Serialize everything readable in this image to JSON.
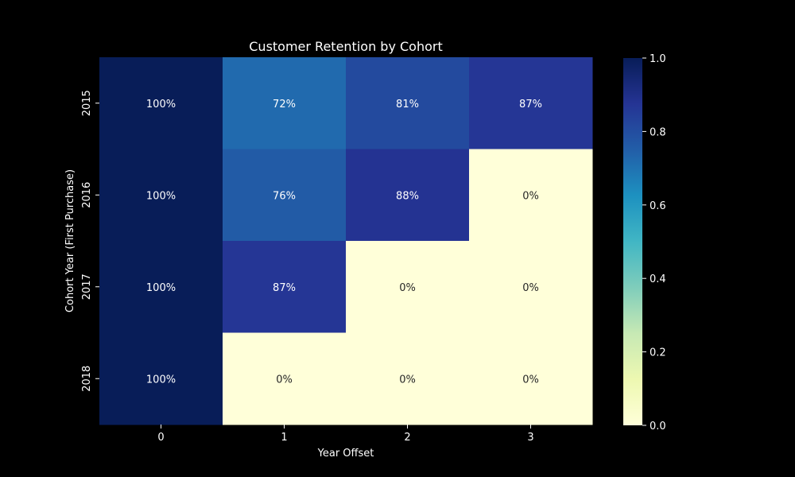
{
  "chart_data": {
    "type": "heatmap",
    "title": "Customer Retention by Cohort",
    "xlabel": "Year Offset",
    "ylabel": "Cohort Year (First Purchase)",
    "x_categories": [
      "0",
      "1",
      "2",
      "3"
    ],
    "y_categories": [
      "2015",
      "2016",
      "2017",
      "2018"
    ],
    "values": [
      [
        1.0,
        0.72,
        0.81,
        0.87
      ],
      [
        1.0,
        0.76,
        0.88,
        0.0
      ],
      [
        1.0,
        0.87,
        0.0,
        0.0
      ],
      [
        1.0,
        0.0,
        0.0,
        0.0
      ]
    ],
    "cell_labels": [
      [
        "100%",
        "72%",
        "81%",
        "87%"
      ],
      [
        "100%",
        "76%",
        "88%",
        "0%"
      ],
      [
        "100%",
        "87%",
        "0%",
        "0%"
      ],
      [
        "100%",
        "0%",
        "0%",
        "0%"
      ]
    ],
    "colormap": "YlGnBu",
    "colorbar": {
      "range": [
        0.0,
        1.0
      ],
      "ticks": [
        "0.0",
        "0.2",
        "0.4",
        "0.6",
        "0.8",
        "1.0"
      ]
    },
    "colors": {
      "background": "#000000",
      "text": "#ffffff",
      "annotation_light": "#ffffff",
      "annotation_dark": "#262626"
    }
  }
}
